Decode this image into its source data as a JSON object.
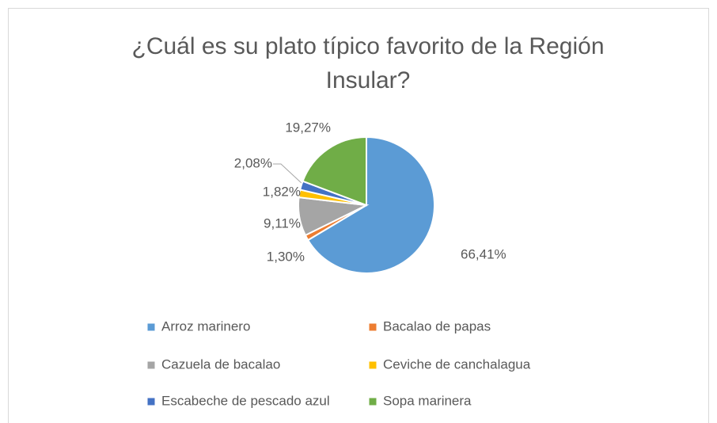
{
  "chart_data": {
    "type": "pie",
    "title": [
      "¿Cuál es su plato típico favorito de la Región",
      "Insular?"
    ],
    "categories": [
      "Arroz marinero",
      "Bacalao de papas",
      "Cazuela de bacalao",
      "Ceviche de canchalagua",
      "Escabeche de pescado azul",
      "Sopa marinera"
    ],
    "values": [
      66.41,
      1.3,
      9.11,
      1.82,
      2.08,
      19.27
    ],
    "value_labels": [
      "66,41%",
      "1,30%",
      "9,11%",
      "1,82%",
      "2,08%",
      "19,27%"
    ],
    "colors": [
      "#5b9bd5",
      "#ed7d31",
      "#a5a5a5",
      "#ffc000",
      "#4472c4",
      "#70ad47"
    ],
    "legend": "bottom"
  }
}
